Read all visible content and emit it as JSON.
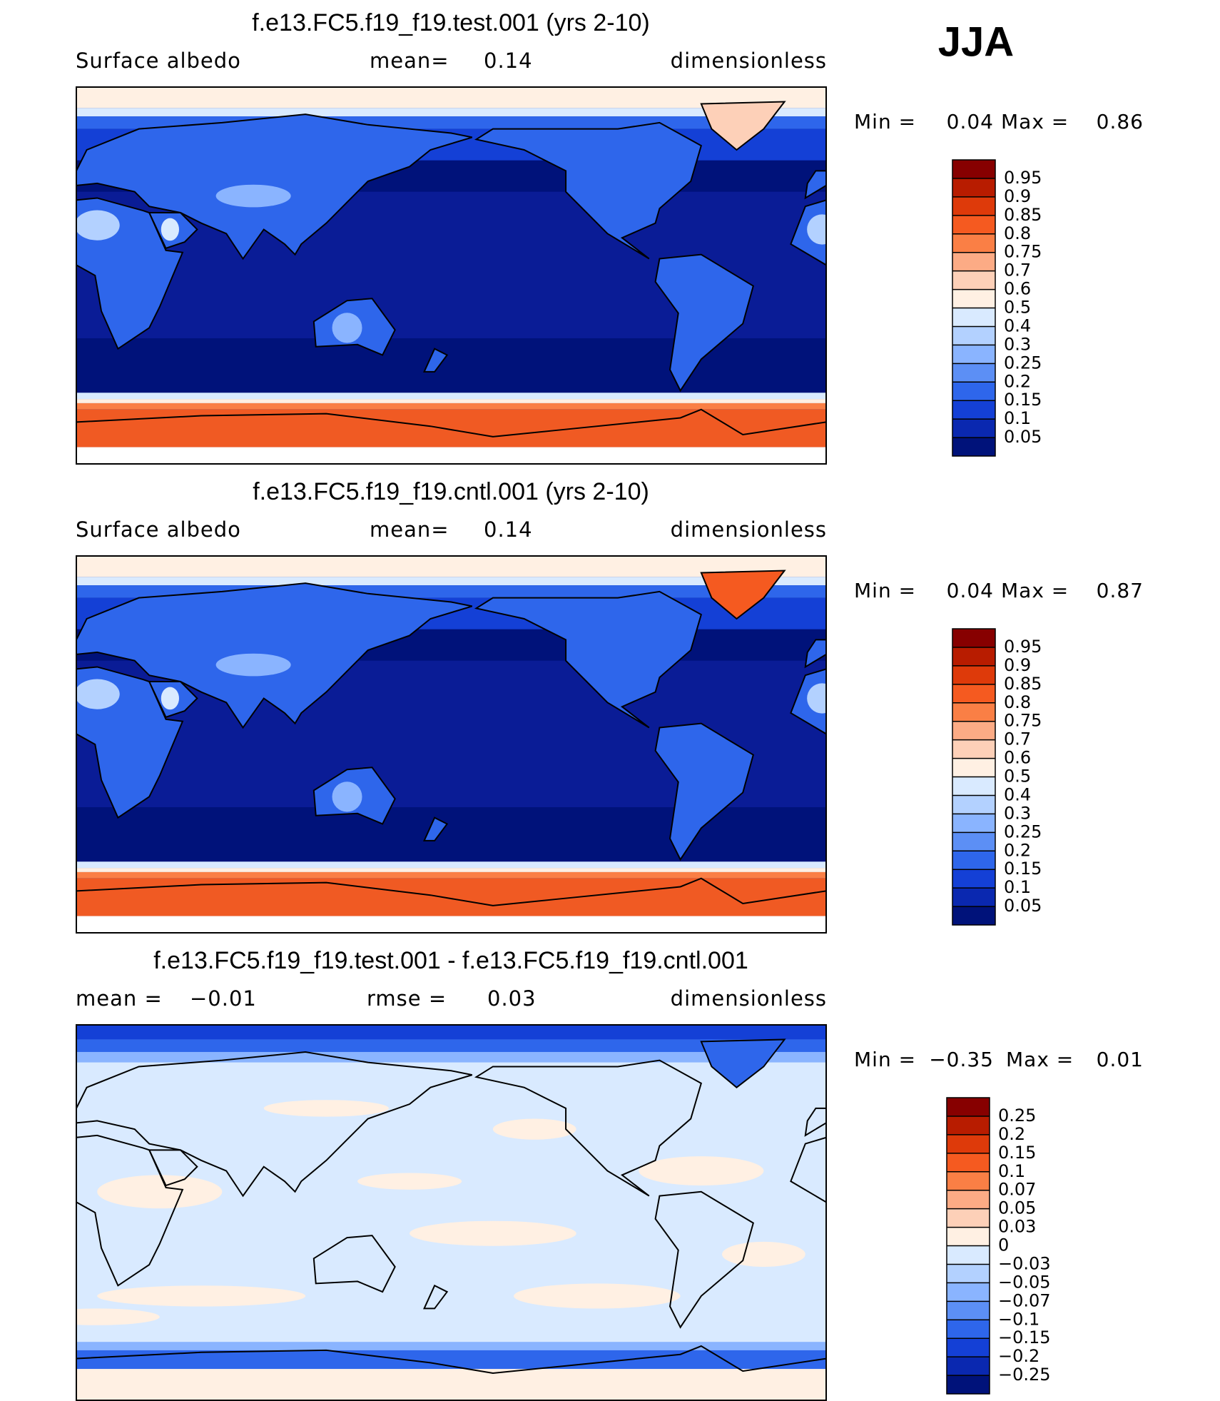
{
  "season": "JJA",
  "panels": [
    {
      "title": "f.e13.FC5.f19_f19.test.001 (yrs 2-10)",
      "left_label": "Surface albedo",
      "center_label": "mean=",
      "center_value": 0.14,
      "right_label": "dimensionless",
      "min_label": "Min =",
      "min": 0.04,
      "max_label": "Max =",
      "max": 0.86,
      "colorbar": {
        "levels": [
          0.95,
          0.9,
          0.85,
          0.8,
          0.75,
          0.7,
          0.6,
          0.5,
          0.4,
          0.3,
          0.25,
          0.2,
          0.15,
          0.1,
          0.05
        ],
        "colors": [
          "#870000",
          "#b81c00",
          "#de3a0a",
          "#f55a20",
          "#fa7f45",
          "#fcab85",
          "#fdd0b8",
          "#fff0e3",
          "#d9eaff",
          "#b3d1ff",
          "#8ab4ff",
          "#5c8ff5",
          "#2e66eb",
          "#1440d6",
          "#0a28b0",
          "#00127a"
        ]
      }
    },
    {
      "title": "f.e13.FC5.f19_f19.cntl.001 (yrs 2-10)",
      "left_label": "Surface albedo",
      "center_label": "mean=",
      "center_value": 0.14,
      "right_label": "dimensionless",
      "min_label": "Min =",
      "min": 0.04,
      "max_label": "Max =",
      "max": 0.87,
      "colorbar": {
        "levels": [
          0.95,
          0.9,
          0.85,
          0.8,
          0.75,
          0.7,
          0.6,
          0.5,
          0.4,
          0.3,
          0.25,
          0.2,
          0.15,
          0.1,
          0.05
        ],
        "colors": [
          "#870000",
          "#b81c00",
          "#de3a0a",
          "#f55a20",
          "#fa7f45",
          "#fcab85",
          "#fdd0b8",
          "#fff0e3",
          "#d9eaff",
          "#b3d1ff",
          "#8ab4ff",
          "#5c8ff5",
          "#2e66eb",
          "#1440d6",
          "#0a28b0",
          "#00127a"
        ]
      }
    },
    {
      "title": "f.e13.FC5.f19_f19.test.001 - f.e13.FC5.f19_f19.cntl.001",
      "left_label": "mean =",
      "left_value": {
        "value": -0.01,
        "label": "−0.01"
      },
      "center_label": "rmse =",
      "center_value": 0.03,
      "right_label": "dimensionless",
      "min_label": "Min =",
      "min": {
        "value": -0.35,
        "label": "−0.35"
      },
      "max_label": "Max =",
      "max": 0.01,
      "colorbar": {
        "levels": [
          0.25,
          0.2,
          0.15,
          0.1,
          0.07,
          0.05,
          0.03,
          0,
          {
            "value": -0.03,
            "label": "−0.03"
          },
          {
            "value": -0.05,
            "label": "−0.05"
          },
          {
            "value": -0.07,
            "label": "−0.07"
          },
          {
            "value": -0.1,
            "label": "−0.1"
          },
          {
            "value": -0.15,
            "label": "−0.15"
          },
          {
            "value": -0.2,
            "label": "−0.2"
          },
          {
            "value": -0.25,
            "label": "−0.25"
          }
        ],
        "colors": [
          "#870000",
          "#b81c00",
          "#de3a0a",
          "#f55a20",
          "#fa7f45",
          "#fcab85",
          "#fdd0b8",
          "#fff0e3",
          "#d9eaff",
          "#b3d1ff",
          "#8ab4ff",
          "#5c8ff5",
          "#2e66eb",
          "#1440d6",
          "#0a28b0",
          "#00127a"
        ]
      }
    }
  ]
}
